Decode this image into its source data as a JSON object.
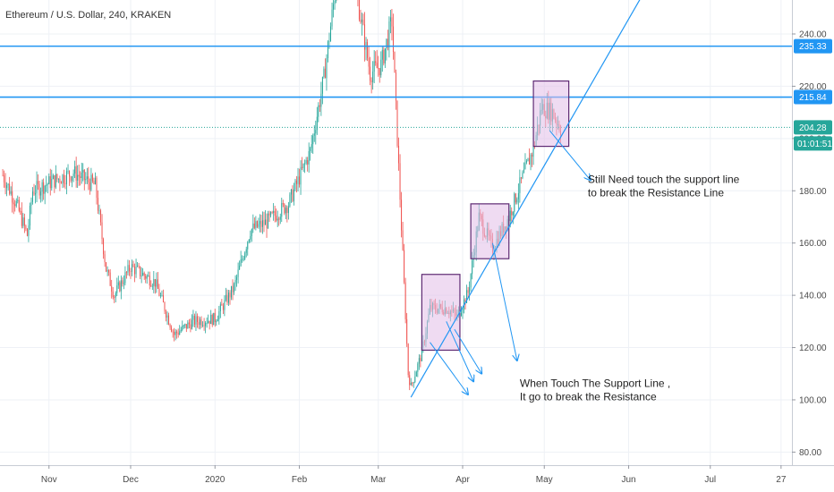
{
  "header": {
    "title": "Ethereum / U.S. Dollar, 240, KRAKEN"
  },
  "chart_data": {
    "type": "candlestick",
    "title": "Ethereum / U.S. Dollar, 240, KRAKEN",
    "ylim": [
      75,
      253
    ],
    "y_ticks": [
      "80.00",
      "100.00",
      "120.00",
      "140.00",
      "160.00",
      "180.00",
      "200.00",
      "220.00",
      "240.00"
    ],
    "x_ticks": [
      "Nov",
      "Dec",
      "2020",
      "Feb",
      "Mar",
      "Apr",
      "May",
      "Jun",
      "Jul",
      "27"
    ],
    "price_path": [
      {
        "date": "2019-10-15",
        "close": 186
      },
      {
        "date": "2019-10-20",
        "close": 175
      },
      {
        "date": "2019-10-24",
        "close": 163
      },
      {
        "date": "2019-10-26",
        "close": 180
      },
      {
        "date": "2019-11-03",
        "close": 184
      },
      {
        "date": "2019-11-10",
        "close": 187
      },
      {
        "date": "2019-11-18",
        "close": 182
      },
      {
        "date": "2019-11-22",
        "close": 150
      },
      {
        "date": "2019-11-25",
        "close": 140
      },
      {
        "date": "2019-12-01",
        "close": 151
      },
      {
        "date": "2019-12-10",
        "close": 145
      },
      {
        "date": "2019-12-17",
        "close": 125
      },
      {
        "date": "2019-12-24",
        "close": 130
      },
      {
        "date": "2020-01-01",
        "close": 131
      },
      {
        "date": "2020-01-08",
        "close": 143
      },
      {
        "date": "2020-01-14",
        "close": 165
      },
      {
        "date": "2020-01-20",
        "close": 168
      },
      {
        "date": "2020-01-28",
        "close": 175
      },
      {
        "date": "2020-02-05",
        "close": 195
      },
      {
        "date": "2020-02-10",
        "close": 223
      },
      {
        "date": "2020-02-14",
        "close": 255
      },
      {
        "date": "2020-02-18",
        "close": 270
      },
      {
        "date": "2020-02-21",
        "close": 262
      },
      {
        "date": "2020-02-27",
        "close": 225
      },
      {
        "date": "2020-03-02",
        "close": 228
      },
      {
        "date": "2020-03-06",
        "close": 245
      },
      {
        "date": "2020-03-08",
        "close": 200
      },
      {
        "date": "2020-03-12",
        "close": 110
      },
      {
        "date": "2020-03-13",
        "close": 105
      },
      {
        "date": "2020-03-17",
        "close": 118
      },
      {
        "date": "2020-03-20",
        "close": 135
      },
      {
        "date": "2020-03-26",
        "close": 135
      },
      {
        "date": "2020-03-30",
        "close": 132
      },
      {
        "date": "2020-04-03",
        "close": 141
      },
      {
        "date": "2020-04-07",
        "close": 170
      },
      {
        "date": "2020-04-12",
        "close": 158
      },
      {
        "date": "2020-04-18",
        "close": 170
      },
      {
        "date": "2020-04-23",
        "close": 185
      },
      {
        "date": "2020-04-27",
        "close": 196
      },
      {
        "date": "2020-04-30",
        "close": 212
      },
      {
        "date": "2020-05-04",
        "close": 210
      },
      {
        "date": "2020-05-07",
        "close": 204
      }
    ],
    "horizontal_lines": [
      {
        "value": 235.33,
        "label": "235.33",
        "style": "solid",
        "color": "#2196f3"
      },
      {
        "value": 215.84,
        "label": "215.84",
        "style": "solid",
        "color": "#2196f3"
      },
      {
        "value": 204.28,
        "label": "204.28",
        "style": "dotted",
        "color": "#26a69a"
      }
    ],
    "countdown": "01:01:51",
    "support_line": {
      "from": {
        "date": "2020-03-13",
        "value": 101
      },
      "to": {
        "date": "2020-06-10",
        "value": 262
      }
    },
    "boxes": [
      {
        "from": "2020-03-17",
        "to": "2020-03-31",
        "low": 119,
        "high": 148
      },
      {
        "from": "2020-04-04",
        "to": "2020-04-18",
        "low": 154,
        "high": 175
      },
      {
        "from": "2020-04-27",
        "to": "2020-05-10",
        "low": 197,
        "high": 222
      }
    ],
    "arrows": [
      {
        "from": {
          "date": "2020-03-20",
          "value": 122
        },
        "to": {
          "date": "2020-04-03",
          "value": 102
        }
      },
      {
        "from": {
          "date": "2020-03-26",
          "value": 130
        },
        "to": {
          "date": "2020-04-05",
          "value": 107
        }
      },
      {
        "from": {
          "date": "2020-03-29",
          "value": 127
        },
        "to": {
          "date": "2020-04-08",
          "value": 110
        }
      },
      {
        "from": {
          "date": "2020-04-12",
          "value": 160
        },
        "to": {
          "date": "2020-04-21",
          "value": 115
        }
      },
      {
        "from": {
          "date": "2020-05-03",
          "value": 203
        },
        "to": {
          "date": "2020-05-18",
          "value": 184
        }
      }
    ],
    "annotations": [
      {
        "lines": [
          "Still Need touch the support line",
          "to break the Resistance Line"
        ],
        "date": "2020-05-17",
        "value": 183
      },
      {
        "lines": [
          "When Touch The Support Line ,",
          "It go to break the Resistance"
        ],
        "date": "2020-04-22",
        "value": 105
      }
    ],
    "colors": {
      "up": "#26a69a",
      "down": "#ef5350",
      "box_fill": "#e1bee7",
      "box_stroke": "#5e2a73",
      "line": "#2196f3"
    }
  }
}
